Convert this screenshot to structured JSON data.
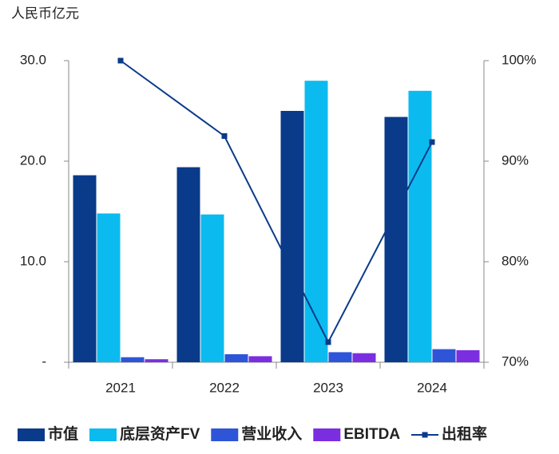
{
  "chart_data": {
    "type": "bar-line",
    "y_label": "人民币亿元",
    "categories": [
      "2021",
      "2022",
      "2023",
      "2024"
    ],
    "series": [
      {
        "name": "市值",
        "color": "#0a3a8a",
        "type": "bar",
        "values": [
          18.6,
          19.4,
          25.0,
          24.4
        ]
      },
      {
        "name": "底层资产FV",
        "color": "#0bbbef",
        "type": "bar",
        "values": [
          14.8,
          14.7,
          28.0,
          27.0
        ]
      },
      {
        "name": "营业收入",
        "color": "#2e55d8",
        "type": "bar",
        "values": [
          0.5,
          0.8,
          1.0,
          1.3
        ]
      },
      {
        "name": "EBITDA",
        "color": "#7a2ee0",
        "type": "bar",
        "values": [
          0.3,
          0.6,
          0.9,
          1.2
        ]
      },
      {
        "name": "出租率",
        "color": "#0a3a8a",
        "type": "line",
        "axis": "y2",
        "values": [
          100,
          92.5,
          72.0,
          91.9
        ]
      }
    ],
    "ylim": [
      0,
      30
    ],
    "yticks": [
      {
        "value": 0,
        "label": "-"
      },
      {
        "value": 10,
        "label": "10.0"
      },
      {
        "value": 20,
        "label": "20.0"
      },
      {
        "value": 30,
        "label": "30.0"
      }
    ],
    "y2lim": [
      70,
      100
    ],
    "y2ticks": [
      {
        "value": 70,
        "label": "70%"
      },
      {
        "value": 80,
        "label": "80%"
      },
      {
        "value": 90,
        "label": "90%"
      },
      {
        "value": 100,
        "label": "100%"
      }
    ],
    "legend": "bottom"
  }
}
